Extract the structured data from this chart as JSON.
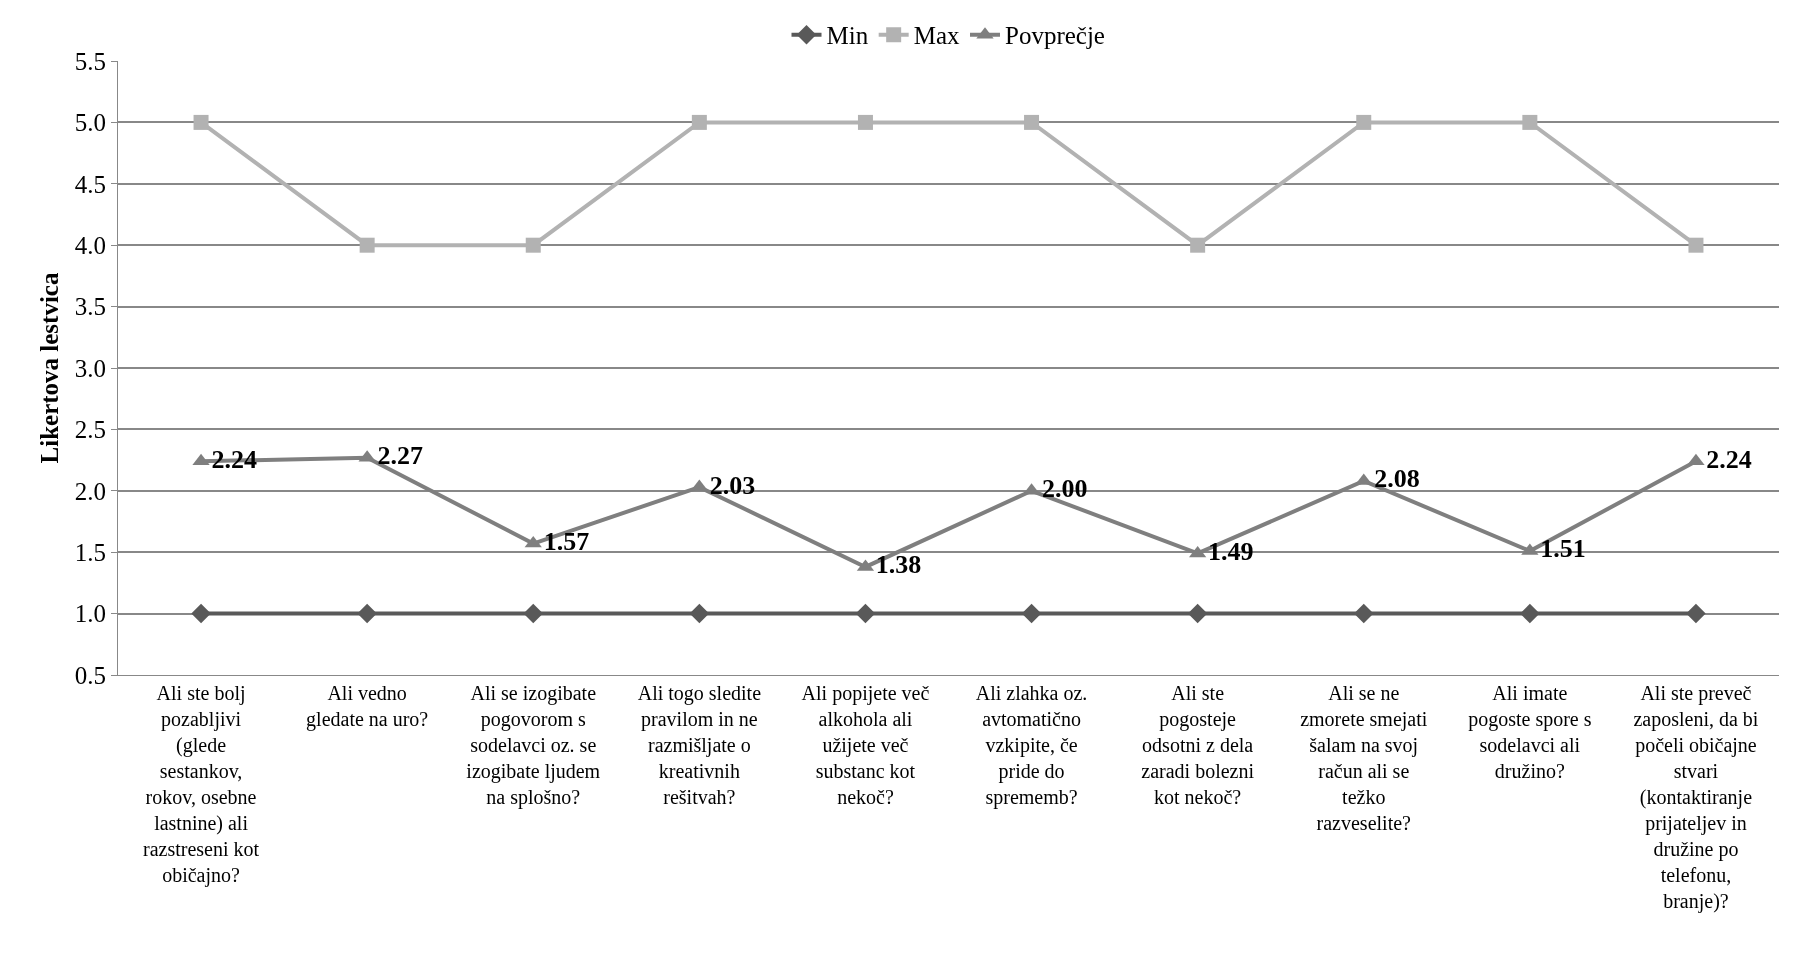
{
  "chart_data": {
    "type": "line",
    "ylabel": "Likertova lestvica",
    "categories": [
      "Ali ste bolj pozabljivi (glede sestankov, rokov, osebne lastnine) ali razstreseni kot običajno?",
      "Ali vedno gledate na uro?",
      "Ali se izogibate pogovorom s sodelavci oz. se izogibate ljudem na splošno?",
      "Ali togo sledite pravilom in ne razmišljate o kreativnih rešitvah?",
      "Ali popijete več alkohola ali užijete več substanc kot nekoč?",
      "Ali zlahka oz. avtomatično vzkipite, če pride do sprememb?",
      "Ali ste pogosteje odsotni z dela zaradi bolezni kot nekoč?",
      "Ali se ne zmorete smejati šalam na svoj račun ali se težko razveselite?",
      "Ali imate pogoste spore s sodelavci ali družino?",
      "Ali ste preveč zaposleni, da bi počeli običajne stvari (kontaktiranje prijateljev in družine po telefonu, branje)?"
    ],
    "series": [
      {
        "name": "Min",
        "color": "#595959",
        "marker": "diamond",
        "values": [
          1,
          1,
          1,
          1,
          1,
          1,
          1,
          1,
          1,
          1
        ]
      },
      {
        "name": "Max",
        "color": "#b2b2b2",
        "marker": "square",
        "values": [
          5,
          4,
          4,
          5,
          5,
          5,
          4,
          5,
          5,
          4
        ]
      },
      {
        "name": "Povprečje",
        "color": "#7f7f7f",
        "marker": "triangle",
        "values": [
          2.24,
          2.27,
          1.57,
          2.03,
          1.38,
          2.0,
          1.49,
          2.08,
          1.51,
          2.24
        ],
        "value_labels": [
          "2.24",
          "2.27",
          "1.57",
          "2.03",
          "1.38",
          "2.00",
          "1.49",
          "2.08",
          "1.51",
          "2.24"
        ]
      }
    ],
    "ylim": [
      0.5,
      5.5
    ],
    "yticks": [
      {
        "value": 0.5,
        "label": "0.5"
      },
      {
        "value": 1,
        "label": "1.0"
      },
      {
        "value": 1.5,
        "label": "1.5"
      },
      {
        "value": 2,
        "label": "2.0"
      },
      {
        "value": 2.5,
        "label": "2.5"
      },
      {
        "value": 3,
        "label": "3.0"
      },
      {
        "value": 3.5,
        "label": "3.5"
      },
      {
        "value": 4,
        "label": "4.0"
      },
      {
        "value": 4.5,
        "label": "4.5"
      },
      {
        "value": 5,
        "label": "5.0"
      },
      {
        "value": 5.5,
        "label": "5.5"
      }
    ],
    "grid": "y",
    "legend": "top",
    "line_style": "solid"
  }
}
